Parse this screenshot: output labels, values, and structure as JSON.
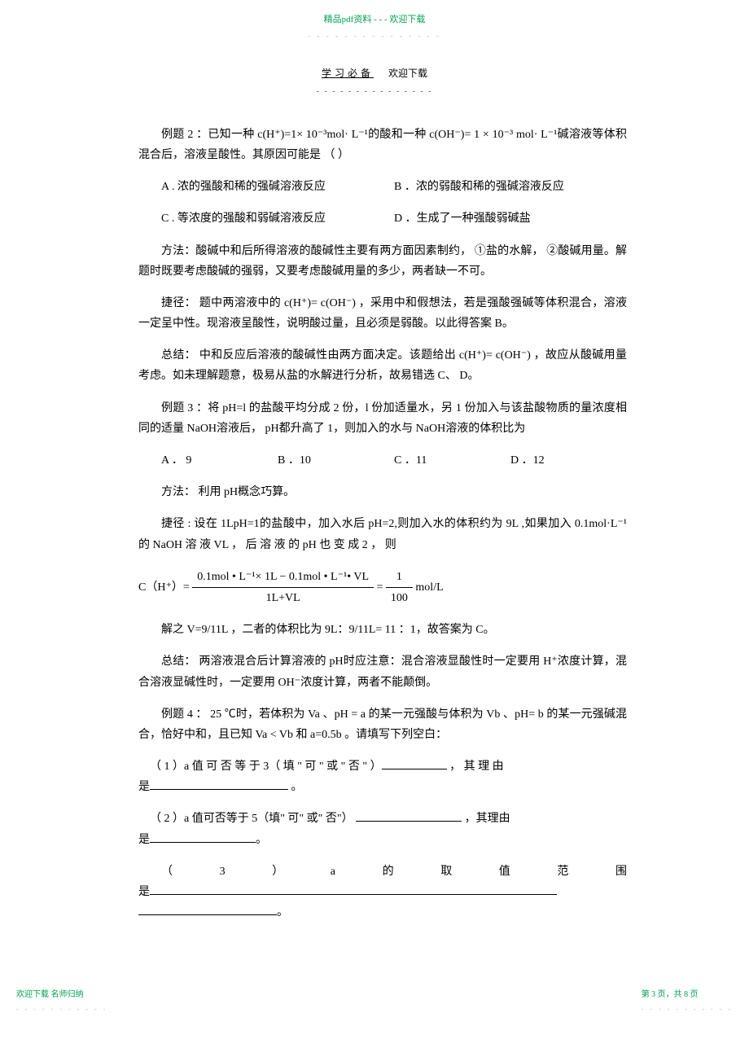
{
  "top_banner": "精品pdf资料 - - - 欢迎下载",
  "top_dots": "- - - - - - - - - - - - - - -",
  "sub_header_left": "学习必备",
  "sub_header_right": "欢迎下载",
  "sub_dashes": "- - - - - - - - - - - - - - -",
  "ex2_intro": "例题 2 ：已知一种  c(H⁺)=1× 10⁻³mol·  L⁻¹的酸和一种  c(OH⁻)= 1 × 10⁻³ mol·  L⁻¹碱溶液等体积混合后，溶液呈酸性。其原因可能是          （     ）",
  "ex2_optA": "A . 浓的强酸和稀的强碱溶液反应",
  "ex2_optB": "B ．浓的弱酸和稀的强碱溶液反应",
  "ex2_optC": "C . 等浓度的强酸和弱碱溶液反应",
  "ex2_optD": "D ．生成了一种强酸弱碱盐",
  "ex2_method": "方法：酸碱中和后所得溶液的酸碱性主要有两方面因素制约，    ①盐的水解， ②酸碱用量。解题时既要考虑酸碱的强弱，又要考虑酸碱用量的多少，两者缺一不可。",
  "ex2_shortcut": "捷径： 题中两溶液中的  c(H⁺)= c(OH⁻) ，采用中和假想法，若是强酸强碱等体积混合，溶液一定呈中性。现溶液呈酸性，说明酸过量，且必须是弱酸。以此得答案        B。",
  "ex2_summary": "总结： 中和反应后溶液的酸碱性由两方面决定。该题给出     c(H⁺)= c(OH⁻) ，故应从酸碱用量考虑。如未理解题意，极易从盐的水解进行分析，故易错选     C、 D。",
  "ex3_intro": "例题 3 ：将 pH=l 的盐酸平均分成  2 份，l 份加适量水，另  1 份加入与该盐酸物质的量浓度相同的适量  NaOH溶液后， pH都升高了  1，则加入的水与  NaOH溶液的体积比为",
  "ex3_optA": "A ． 9",
  "ex3_optB": "B ．10",
  "ex3_optC": "C ．11",
  "ex3_optD": "D ．12",
  "ex3_method": "方法： 利用 pH概念巧算。",
  "ex3_shortcut_p1": "捷径 : 设在 1LpH=1的盐酸中，加入水后 pH=2,则加入水的体积约为  9L ,如果加入 0.1mol·L⁻¹ 的  NaOH 溶 液  VL ， 后 溶 液 的  pH 也 变 成  2 ， 则",
  "formula_prefix": "C（H⁺）=",
  "formula_num": "0.1mol • L⁻¹× 1L − 0.1mol • L⁻¹• VL",
  "formula_den": "1L+VL",
  "formula_eq": "=",
  "formula_frac2_num": "1",
  "formula_frac2_den": "100",
  "formula_unit": " mol/L",
  "ex3_solve": "解之 V=9/11L ，二者的体积比为  9L：9/11L= 11 ：1，故答案为  C。",
  "ex3_summary": "总结： 两溶液混合后计算溶液的  pH时应注意：混合溶液显酸性时一定要用  H⁺浓度计算，混合溶液显碱性时，一定要用  OH⁻浓度计算，两者不能颠倒。",
  "ex4_intro": "例题 4 ： 25 ℃时，若体积为  Va 、pH = a 的某一元强酸与体积为  Vb 、pH= b 的某一元强碱混合，恰好中和，且已知   Va < Vb  和 a=0.5b 。请填写下列空白：",
  "ex4_q1": "（ 1 ）a 值 可 否 等 于  3（ 填 \" 可 \" 或 \" 否 \" ）",
  "ex4_q1_tail": " ， 其 理 由",
  "ex4_is": "是",
  "ex4_period": " 。",
  "ex4_q2": "（ 2 ）a 值可否等于  5（填\" 可\" 或\" 否\"）    ",
  "ex4_q2_tail": "    ，其理由",
  "ex4_q3_a": "（",
  "ex4_q3_b": "3",
  "ex4_q3_c": "）",
  "ex4_q3_d": "a",
  "ex4_q3_e": "的",
  "ex4_q3_f": "取",
  "ex4_q3_g": "值",
  "ex4_q3_h": "范",
  "ex4_q3_i": "围",
  "footer_left": "欢迎下载 名师归纳",
  "footer_right": "第 3 页，共 8 页",
  "footer_dots": "- - - - - - - - - - -"
}
